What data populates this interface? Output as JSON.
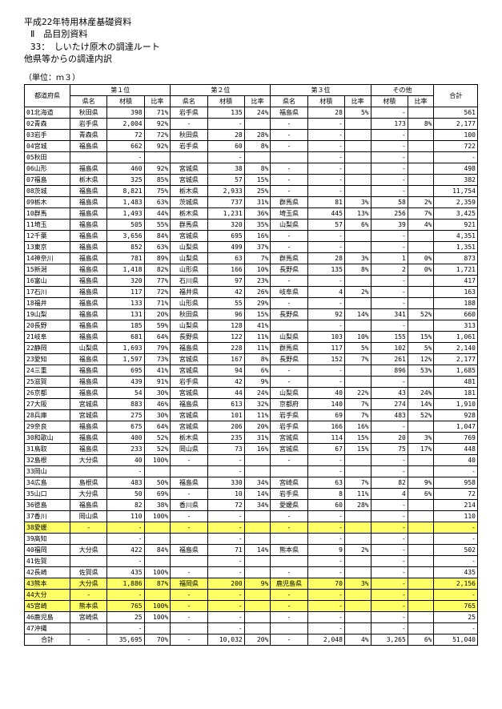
{
  "headers": {
    "h1": "平成22年特用林産基礎資料",
    "h2": "Ⅱ　品目別資料",
    "h3": "33：　しいたけ原木の調達ルート",
    "h4": "他県等からの調達内訳",
    "unit": "（単位：ｍ３）"
  },
  "colheads": {
    "region": "都道府県",
    "rank1": "第１位",
    "rank2": "第２位",
    "rank3": "第３位",
    "other": "その他",
    "pref": "県名",
    "vol": "材積",
    "ratio": "比率",
    "total": "合計"
  },
  "rows": [
    {
      "lbl": "01北海道",
      "p1": "秋田県",
      "v1": "398",
      "r1": "71%",
      "p2": "岩手県",
      "v2": "135",
      "r2": "24%",
      "p3": "福島県",
      "v3": "28",
      "r3": "5%",
      "ov": "-",
      "or": "",
      "tot": "561"
    },
    {
      "lbl": "02青森",
      "p1": "岩手県",
      "v1": "2,004",
      "r1": "92%",
      "p2": "-",
      "v2": "-",
      "r2": "",
      "p3": "-",
      "v3": "-",
      "r3": "",
      "ov": "173",
      "or": "8%",
      "tot": "2,177"
    },
    {
      "lbl": "03岩手",
      "p1": "青森県",
      "v1": "72",
      "r1": "72%",
      "p2": "秋田県",
      "v2": "28",
      "r2": "28%",
      "p3": "-",
      "v3": "-",
      "r3": "",
      "ov": "-",
      "or": "",
      "tot": "100"
    },
    {
      "lbl": "04宮城",
      "p1": "福島県",
      "v1": "662",
      "r1": "92%",
      "p2": "岩手県",
      "v2": "60",
      "r2": "8%",
      "p3": "-",
      "v3": "-",
      "r3": "",
      "ov": "-",
      "or": "",
      "tot": "722"
    },
    {
      "lbl": "05秋田",
      "p1": "",
      "v1": "-",
      "r1": "",
      "p2": "",
      "v2": "-",
      "r2": "",
      "p3": "",
      "v3": "-",
      "r3": "",
      "ov": "-",
      "or": "",
      "tot": "-"
    },
    {
      "lbl": "06山形",
      "p1": "福島県",
      "v1": "460",
      "r1": "92%",
      "p2": "宮城県",
      "v2": "38",
      "r2": "8%",
      "p3": "-",
      "v3": "-",
      "r3": "",
      "ov": "-",
      "or": "",
      "tot": "498"
    },
    {
      "lbl": "07福島",
      "p1": "栃木県",
      "v1": "325",
      "r1": "85%",
      "p2": "宮城県",
      "v2": "57",
      "r2": "15%",
      "p3": "-",
      "v3": "-",
      "r3": "",
      "ov": "-",
      "or": "",
      "tot": "382"
    },
    {
      "lbl": "08茨城",
      "p1": "福島県",
      "v1": "8,821",
      "r1": "75%",
      "p2": "栃木県",
      "v2": "2,933",
      "r2": "25%",
      "p3": "-",
      "v3": "-",
      "r3": "",
      "ov": "-",
      "or": "",
      "tot": "11,754"
    },
    {
      "lbl": "09栃木",
      "p1": "福島県",
      "v1": "1,483",
      "r1": "63%",
      "p2": "茨城県",
      "v2": "737",
      "r2": "31%",
      "p3": "群馬県",
      "v3": "81",
      "r3": "3%",
      "ov": "58",
      "or": "2%",
      "tot": "2,359"
    },
    {
      "lbl": "10群馬",
      "p1": "福島県",
      "v1": "1,493",
      "r1": "44%",
      "p2": "栃木県",
      "v2": "1,231",
      "r2": "36%",
      "p3": "埼玉県",
      "v3": "445",
      "r3": "13%",
      "ov": "256",
      "or": "7%",
      "tot": "3,425"
    },
    {
      "lbl": "11埼玉",
      "p1": "福島県",
      "v1": "505",
      "r1": "55%",
      "p2": "群馬県",
      "v2": "320",
      "r2": "35%",
      "p3": "山梨県",
      "v3": "57",
      "r3": "6%",
      "ov": "39",
      "or": "4%",
      "tot": "921"
    },
    {
      "lbl": "12千葉",
      "p1": "福島県",
      "v1": "3,656",
      "r1": "84%",
      "p2": "宮城県",
      "v2": "695",
      "r2": "16%",
      "p3": "-",
      "v3": "-",
      "r3": "",
      "ov": "-",
      "or": "",
      "tot": "4,351"
    },
    {
      "lbl": "13東京",
      "p1": "福島県",
      "v1": "852",
      "r1": "63%",
      "p2": "山梨県",
      "v2": "499",
      "r2": "37%",
      "p3": "-",
      "v3": "-",
      "r3": "",
      "ov": "-",
      "or": "",
      "tot": "1,351"
    },
    {
      "lbl": "14神奈川",
      "p1": "福島県",
      "v1": "781",
      "r1": "89%",
      "p2": "山梨県",
      "v2": "63",
      "r2": "7%",
      "p3": "群馬県",
      "v3": "28",
      "r3": "3%",
      "ov": "1",
      "or": "0%",
      "tot": "873"
    },
    {
      "lbl": "15新潟",
      "p1": "福島県",
      "v1": "1,418",
      "r1": "82%",
      "p2": "山形県",
      "v2": "166",
      "r2": "10%",
      "p3": "長野県",
      "v3": "135",
      "r3": "8%",
      "ov": "2",
      "or": "0%",
      "tot": "1,721"
    },
    {
      "lbl": "16富山",
      "p1": "福島県",
      "v1": "320",
      "r1": "77%",
      "p2": "石川県",
      "v2": "97",
      "r2": "23%",
      "p3": "-",
      "v3": "-",
      "r3": "",
      "ov": "-",
      "or": "",
      "tot": "417"
    },
    {
      "lbl": "17石川",
      "p1": "福島県",
      "v1": "117",
      "r1": "72%",
      "p2": "福井県",
      "v2": "42",
      "r2": "26%",
      "p3": "岐阜県",
      "v3": "4",
      "r3": "2%",
      "ov": "-",
      "or": "",
      "tot": "163"
    },
    {
      "lbl": "18福井",
      "p1": "福島県",
      "v1": "133",
      "r1": "71%",
      "p2": "山形県",
      "v2": "55",
      "r2": "29%",
      "p3": "-",
      "v3": "-",
      "r3": "",
      "ov": "-",
      "or": "",
      "tot": "188"
    },
    {
      "lbl": "19山梨",
      "p1": "福島県",
      "v1": "131",
      "r1": "20%",
      "p2": "秋田県",
      "v2": "96",
      "r2": "15%",
      "p3": "長野県",
      "v3": "92",
      "r3": "14%",
      "ov": "341",
      "or": "52%",
      "tot": "660"
    },
    {
      "lbl": "20長野",
      "p1": "福島県",
      "v1": "185",
      "r1": "59%",
      "p2": "山梨県",
      "v2": "128",
      "r2": "41%",
      "p3": "",
      "v3": "-",
      "r3": "",
      "ov": "-",
      "or": "",
      "tot": "313"
    },
    {
      "lbl": "21岐阜",
      "p1": "福島県",
      "v1": "681",
      "r1": "64%",
      "p2": "長野県",
      "v2": "122",
      "r2": "11%",
      "p3": "山梨県",
      "v3": "103",
      "r3": "10%",
      "ov": "155",
      "or": "15%",
      "tot": "1,061"
    },
    {
      "lbl": "22静岡",
      "p1": "山梨県",
      "v1": "1,693",
      "r1": "79%",
      "p2": "福島県",
      "v2": "228",
      "r2": "11%",
      "p3": "群馬県",
      "v3": "117",
      "r3": "5%",
      "ov": "102",
      "or": "5%",
      "tot": "2,140"
    },
    {
      "lbl": "23愛知",
      "p1": "福島県",
      "v1": "1,597",
      "r1": "73%",
      "p2": "宮城県",
      "v2": "167",
      "r2": "8%",
      "p3": "長野県",
      "v3": "152",
      "r3": "7%",
      "ov": "261",
      "or": "12%",
      "tot": "2,177"
    },
    {
      "lbl": "24三重",
      "p1": "福島県",
      "v1": "695",
      "r1": "41%",
      "p2": "宮城県",
      "v2": "94",
      "r2": "6%",
      "p3": "-",
      "v3": "-",
      "r3": "",
      "ov": "896",
      "or": "53%",
      "tot": "1,685"
    },
    {
      "lbl": "25滋賀",
      "p1": "福島県",
      "v1": "439",
      "r1": "91%",
      "p2": "岩手県",
      "v2": "42",
      "r2": "9%",
      "p3": "-",
      "v3": "-",
      "r3": "",
      "ov": "-",
      "or": "",
      "tot": "481"
    },
    {
      "lbl": "26京都",
      "p1": "福島県",
      "v1": "54",
      "r1": "30%",
      "p2": "宮城県",
      "v2": "44",
      "r2": "24%",
      "p3": "山梨県",
      "v3": "40",
      "r3": "22%",
      "ov": "43",
      "or": "24%",
      "tot": "181"
    },
    {
      "lbl": "27大阪",
      "p1": "宮城県",
      "v1": "883",
      "r1": "46%",
      "p2": "福島県",
      "v2": "613",
      "r2": "32%",
      "p3": "京都府",
      "v3": "140",
      "r3": "7%",
      "ov": "274",
      "or": "14%",
      "tot": "1,910"
    },
    {
      "lbl": "28兵庫",
      "p1": "宮城県",
      "v1": "275",
      "r1": "30%",
      "p2": "宮城県",
      "v2": "101",
      "r2": "11%",
      "p3": "岩手県",
      "v3": "69",
      "r3": "7%",
      "ov": "483",
      "or": "52%",
      "tot": "928"
    },
    {
      "lbl": "29奈良",
      "p1": "福島県",
      "v1": "675",
      "r1": "64%",
      "p2": "宮城県",
      "v2": "206",
      "r2": "20%",
      "p3": "岩手県",
      "v3": "166",
      "r3": "16%",
      "ov": "-",
      "or": "",
      "tot": "1,047"
    },
    {
      "lbl": "30和歌山",
      "p1": "福島県",
      "v1": "400",
      "r1": "52%",
      "p2": "栃木県",
      "v2": "235",
      "r2": "31%",
      "p3": "宮城県",
      "v3": "114",
      "r3": "15%",
      "ov": "20",
      "or": "3%",
      "tot": "769"
    },
    {
      "lbl": "31鳥取",
      "p1": "福島県",
      "v1": "233",
      "r1": "52%",
      "p2": "岡山県",
      "v2": "73",
      "r2": "16%",
      "p3": "宮城県",
      "v3": "67",
      "r3": "15%",
      "ov": "75",
      "or": "17%",
      "tot": "448"
    },
    {
      "lbl": "32島根",
      "p1": "大分県",
      "v1": "40",
      "r1": "100%",
      "p2": "-",
      "v2": "-",
      "r2": "",
      "p3": "-",
      "v3": "-",
      "r3": "",
      "ov": "-",
      "or": "",
      "tot": "40"
    },
    {
      "lbl": "33岡山",
      "p1": "",
      "v1": "-",
      "r1": "",
      "p2": "",
      "v2": "-",
      "r2": "",
      "p3": "",
      "v3": "-",
      "r3": "",
      "ov": "-",
      "or": "",
      "tot": "-"
    },
    {
      "lbl": "34広島",
      "p1": "島根県",
      "v1": "483",
      "r1": "50%",
      "p2": "福島県",
      "v2": "330",
      "r2": "34%",
      "p3": "宮崎県",
      "v3": "63",
      "r3": "7%",
      "ov": "82",
      "or": "9%",
      "tot": "958"
    },
    {
      "lbl": "35山口",
      "p1": "大分県",
      "v1": "50",
      "r1": "69%",
      "p2": "-",
      "v2": "10",
      "r2": "14%",
      "p3": "岩手県",
      "v3": "8",
      "r3": "11%",
      "ov": "4",
      "or": "6%",
      "tot": "72"
    },
    {
      "lbl": "36徳島",
      "p1": "福島県",
      "v1": "82",
      "r1": "38%",
      "p2": "香川県",
      "v2": "72",
      "r2": "34%",
      "p3": "愛媛県",
      "v3": "60",
      "r3": "28%",
      "ov": "-",
      "or": "",
      "tot": "214"
    },
    {
      "lbl": "37香川",
      "p1": "岡山県",
      "v1": "110",
      "r1": "100%",
      "p2": "-",
      "v2": "-",
      "r2": "",
      "p3": "-",
      "v3": "-",
      "r3": "",
      "ov": "-",
      "or": "",
      "tot": "110"
    },
    {
      "lbl": "38愛媛",
      "p1": "-",
      "v1": "-",
      "r1": "",
      "p2": "-",
      "v2": "-",
      "r2": "",
      "p3": "-",
      "v3": "-",
      "r3": "",
      "ov": "-",
      "or": "",
      "tot": "-",
      "hl": true
    },
    {
      "lbl": "39高知",
      "p1": "",
      "v1": "-",
      "r1": "",
      "p2": "",
      "v2": "-",
      "r2": "",
      "p3": "",
      "v3": "-",
      "r3": "",
      "ov": "-",
      "or": "",
      "tot": "-"
    },
    {
      "lbl": "40福岡",
      "p1": "大分県",
      "v1": "422",
      "r1": "84%",
      "p2": "福島県",
      "v2": "71",
      "r2": "14%",
      "p3": "熊本県",
      "v3": "9",
      "r3": "2%",
      "ov": "-",
      "or": "",
      "tot": "502"
    },
    {
      "lbl": "41佐賀",
      "p1": "",
      "v1": "-",
      "r1": "",
      "p2": "",
      "v2": "-",
      "r2": "",
      "p3": "",
      "v3": "-",
      "r3": "",
      "ov": "-",
      "or": "",
      "tot": "-"
    },
    {
      "lbl": "42長崎",
      "p1": "佐賀県",
      "v1": "435",
      "r1": "100%",
      "p2": "-",
      "v2": "-",
      "r2": "",
      "p3": "-",
      "v3": "-",
      "r3": "",
      "ov": "-",
      "or": "",
      "tot": "435"
    },
    {
      "lbl": "43熊本",
      "p1": "大分県",
      "v1": "1,886",
      "r1": "87%",
      "p2": "福岡県",
      "v2": "200",
      "r2": "9%",
      "p3": "鹿児島県",
      "v3": "70",
      "r3": "3%",
      "ov": "-",
      "or": "",
      "tot": "2,156",
      "hl": true
    },
    {
      "lbl": "44大分",
      "p1": "-",
      "v1": "-",
      "r1": "",
      "p2": "-",
      "v2": "-",
      "r2": "",
      "p3": "-",
      "v3": "-",
      "r3": "",
      "ov": "-",
      "or": "",
      "tot": "-",
      "hl": true
    },
    {
      "lbl": "45宮崎",
      "p1": "熊本県",
      "v1": "765",
      "r1": "100%",
      "p2": "-",
      "v2": "-",
      "r2": "",
      "p3": "-",
      "v3": "-",
      "r3": "",
      "ov": "-",
      "or": "",
      "tot": "765",
      "hl": true
    },
    {
      "lbl": "46鹿児島",
      "p1": "宮崎県",
      "v1": "25",
      "r1": "100%",
      "p2": "-",
      "v2": "-",
      "r2": "",
      "p3": "-",
      "v3": "-",
      "r3": "",
      "ov": "-",
      "or": "",
      "tot": "25"
    },
    {
      "lbl": "47沖縄",
      "p1": "",
      "v1": "-",
      "r1": "",
      "p2": "",
      "v2": "-",
      "r2": "",
      "p3": "",
      "v3": "-",
      "r3": "",
      "ov": "-",
      "or": "",
      "tot": "-"
    }
  ],
  "sum": {
    "lbl": "合計",
    "p1": "-",
    "v1": "35,695",
    "r1": "70%",
    "p2": "-",
    "v2": "10,032",
    "r2": "20%",
    "p3": "-",
    "v3": "2,048",
    "r3": "4%",
    "ov": "3,265",
    "or": "6%",
    "tot": "51,040"
  }
}
